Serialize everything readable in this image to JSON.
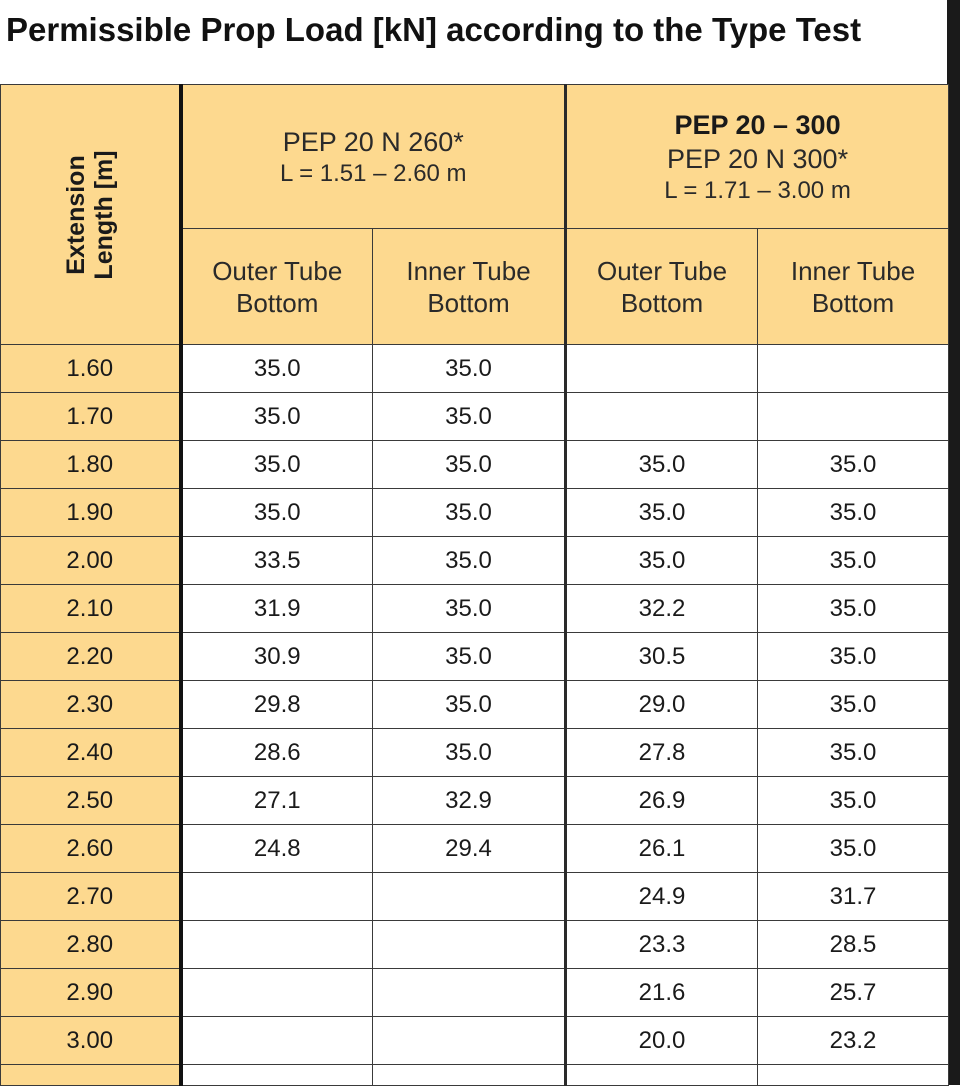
{
  "title": "Permissible Prop Load [kN] according to the Type Test",
  "colors": {
    "header_bg": "#fdd98f",
    "line": "#111111"
  },
  "header": {
    "extension": {
      "line1": "Extension",
      "line2": "Length [m]"
    },
    "group1": {
      "line1": "PEP 20 N 260*",
      "range": "L = 1.51 – 2.60 m"
    },
    "group2": {
      "bold": "PEP 20 – 300",
      "line1": "PEP 20 N 300*",
      "range": "L = 1.71 – 3.00 m"
    },
    "positions": [
      {
        "a": "Outer Tube",
        "b": "Bottom"
      },
      {
        "a": "Inner Tube",
        "b": "Bottom"
      },
      {
        "a": "Outer Tube",
        "b": "Bottom"
      },
      {
        "a": "Inner Tube",
        "b": "Bottom"
      }
    ]
  },
  "rows": [
    {
      "len": "1.60",
      "v": [
        "35.0",
        "35.0",
        "",
        ""
      ]
    },
    {
      "len": "1.70",
      "v": [
        "35.0",
        "35.0",
        "",
        ""
      ]
    },
    {
      "len": "1.80",
      "v": [
        "35.0",
        "35.0",
        "35.0",
        "35.0"
      ]
    },
    {
      "len": "1.90",
      "v": [
        "35.0",
        "35.0",
        "35.0",
        "35.0"
      ]
    },
    {
      "len": "2.00",
      "v": [
        "33.5",
        "35.0",
        "35.0",
        "35.0"
      ]
    },
    {
      "len": "2.10",
      "v": [
        "31.9",
        "35.0",
        "32.2",
        "35.0"
      ]
    },
    {
      "len": "2.20",
      "v": [
        "30.9",
        "35.0",
        "30.5",
        "35.0"
      ]
    },
    {
      "len": "2.30",
      "v": [
        "29.8",
        "35.0",
        "29.0",
        "35.0"
      ]
    },
    {
      "len": "2.40",
      "v": [
        "28.6",
        "35.0",
        "27.8",
        "35.0"
      ]
    },
    {
      "len": "2.50",
      "v": [
        "27.1",
        "32.9",
        "26.9",
        "35.0"
      ]
    },
    {
      "len": "2.60",
      "v": [
        "24.8",
        "29.4",
        "26.1",
        "35.0"
      ]
    },
    {
      "len": "2.70",
      "v": [
        "",
        "",
        "24.9",
        "31.7"
      ]
    },
    {
      "len": "2.80",
      "v": [
        "",
        "",
        "23.3",
        "28.5"
      ]
    },
    {
      "len": "2.90",
      "v": [
        "",
        "",
        "21.6",
        "25.7"
      ]
    },
    {
      "len": "3.00",
      "v": [
        "",
        "",
        "20.0",
        "23.2"
      ]
    }
  ]
}
